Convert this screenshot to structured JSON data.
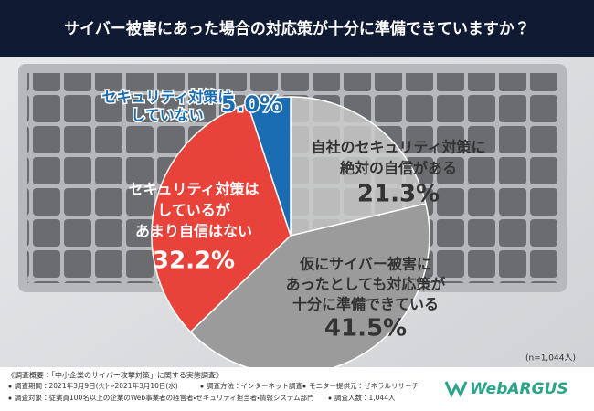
{
  "chart_data": {
    "type": "pie",
    "title": "サイバー被害にあった場合の対応策が十分に準備できていますか？",
    "categories": [
      [
        "自社のセキュリティ対策に",
        "絶対の自信がある"
      ],
      [
        "仮にサイバー被害に",
        "あったとしても対応策が",
        "十分に準備できている"
      ],
      [
        "セキュリティ対策は",
        "しているが",
        "あまり自信はない"
      ],
      [
        "セキュリティ対策は",
        "していない"
      ]
    ],
    "values": [
      21.3,
      41.5,
      32.2,
      5.0
    ],
    "value_labels": [
      "21.3%",
      "41.5%",
      "32.2%",
      "5.0%"
    ],
    "colors": [
      "#c9c9c9",
      "#9b9b9b",
      "#e8433b",
      "#1a6db3"
    ],
    "note": "(n=1,044人)"
  },
  "footer": {
    "heading": "《調査概要：「中小企業のサイバー攻撃対策」に関する実態調査》",
    "items": [
      "調査期間：2021年3月9日(火)～2021年3月10日(水)",
      "調査方法：インターネット調査",
      "モニター提供元：ゼネラルリサーチ",
      "調査対象：従業員100名以上の企業のWeb事業者の経営者・セキュリティ担当者・情報システム部門",
      "調査人数：1,044人"
    ],
    "logo": "WebARGUS"
  }
}
